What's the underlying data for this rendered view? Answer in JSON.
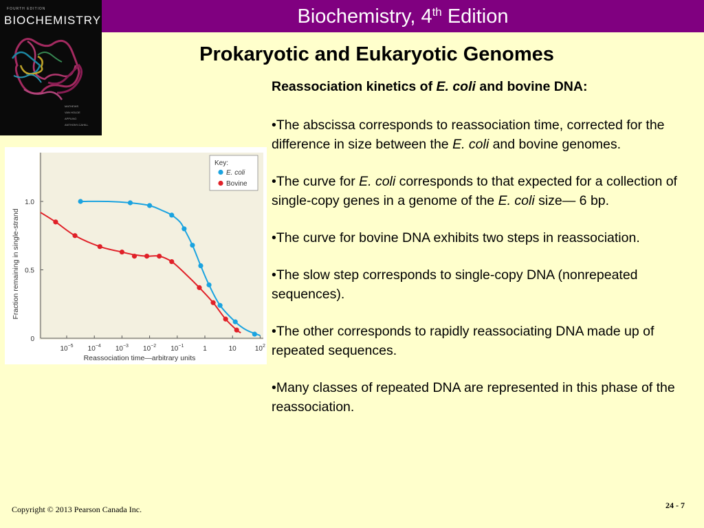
{
  "header": {
    "title_prefix": "Biochemistry, 4",
    "title_sup": "th",
    "title_suffix": " Edition",
    "bar_color": "#800080"
  },
  "book_cover": {
    "edition": "FOURTH EDITION",
    "title": "BIOCHEMISTRY",
    "authors": [
      "MATHEWS",
      "VAN HOLDE",
      "APPLING",
      "ANTHONY-CAHILL"
    ]
  },
  "slide": {
    "title": "Prokaryotic and Eukaryotic Genomes"
  },
  "text": {
    "heading_pre": "Reassociation kinetics of ",
    "heading_em": "E. coli",
    "heading_post": " and bovine DNA:",
    "b1_pre": "•The abscissa corresponds to reassociation time, corrected for the difference in size between the ",
    "b1_em": "E. coli",
    "b1_post": " and bovine genomes.",
    "b2_pre": "•The curve for ",
    "b2_em1": "E. coli",
    "b2_mid": " corresponds to that expected for a collection of single-copy genes in a genome of the ",
    "b2_em2": "E. coli",
    "b2_post": " size— 6 bp.",
    "b3": "•The curve for bovine DNA exhibits two steps in reassociation.",
    "b4": "•The slow step corresponds to single-copy DNA (nonrepeated sequences).",
    "b5": "•The other corresponds to rapidly reassociating DNA made up of repeated sequences.",
    "b6": "•Many classes of repeated DNA are represented in this phase of the reassociation."
  },
  "footer": {
    "copyright": "Copyright © 2013 Pearson Canada Inc.",
    "page": "24 - 7"
  },
  "chart_data": {
    "type": "line",
    "xlabel": "Reassociation time—arbitrary units",
    "ylabel": "Fraction remaining in single-strand",
    "x_scale": "log",
    "xlim": [
      -6,
      2
    ],
    "ylim": [
      0,
      1.2
    ],
    "x_ticks": [
      {
        "v": -5,
        "base": "10",
        "exp": "−5"
      },
      {
        "v": -4,
        "base": "10",
        "exp": "−4"
      },
      {
        "v": -3,
        "base": "10",
        "exp": "−3"
      },
      {
        "v": -2,
        "base": "10",
        "exp": "−2"
      },
      {
        "v": -1,
        "base": "10",
        "exp": "−1"
      },
      {
        "v": 0,
        "base": "1",
        "exp": ""
      },
      {
        "v": 1,
        "base": "10",
        "exp": ""
      },
      {
        "v": 2,
        "base": "10",
        "exp": "2"
      }
    ],
    "y_ticks": [
      {
        "v": 0,
        "label": "0"
      },
      {
        "v": 0.5,
        "label": "0.5"
      },
      {
        "v": 1.0,
        "label": "1.0"
      }
    ],
    "legend": {
      "title": "Key:",
      "position": "top-right"
    },
    "series": [
      {
        "name": "E. coli",
        "color": "#1aa3e0",
        "points": [
          [
            -4.5,
            1.0
          ],
          [
            -2.7,
            0.99
          ],
          [
            -2.0,
            0.97
          ],
          [
            -1.2,
            0.9
          ],
          [
            -0.75,
            0.8
          ],
          [
            -0.45,
            0.68
          ],
          [
            -0.15,
            0.53
          ],
          [
            0.15,
            0.39
          ],
          [
            0.55,
            0.24
          ],
          [
            1.1,
            0.12
          ],
          [
            1.8,
            0.03
          ]
        ],
        "curve": [
          [
            -4.5,
            1.0
          ],
          [
            -3.5,
            1.0
          ],
          [
            -2.7,
            0.99
          ],
          [
            -2.0,
            0.97
          ],
          [
            -1.5,
            0.93
          ],
          [
            -1.2,
            0.9
          ],
          [
            -0.9,
            0.85
          ],
          [
            -0.75,
            0.8
          ],
          [
            -0.45,
            0.68
          ],
          [
            -0.15,
            0.53
          ],
          [
            0.15,
            0.39
          ],
          [
            0.55,
            0.24
          ],
          [
            1.1,
            0.12
          ],
          [
            1.5,
            0.06
          ],
          [
            2.0,
            0.02
          ]
        ]
      },
      {
        "name": "Bovine",
        "color": "#e02028",
        "points": [
          [
            -5.4,
            0.85
          ],
          [
            -4.7,
            0.75
          ],
          [
            -3.8,
            0.67
          ],
          [
            -3.0,
            0.63
          ],
          [
            -2.55,
            0.6
          ],
          [
            -2.1,
            0.6
          ],
          [
            -1.65,
            0.6
          ],
          [
            -1.2,
            0.56
          ],
          [
            -0.2,
            0.37
          ],
          [
            0.3,
            0.26
          ],
          [
            0.75,
            0.14
          ],
          [
            1.15,
            0.06
          ]
        ],
        "curve": [
          [
            -5.95,
            0.92
          ],
          [
            -5.4,
            0.85
          ],
          [
            -4.7,
            0.75
          ],
          [
            -3.8,
            0.67
          ],
          [
            -3.0,
            0.63
          ],
          [
            -2.55,
            0.61
          ],
          [
            -2.1,
            0.6
          ],
          [
            -1.65,
            0.6
          ],
          [
            -1.2,
            0.56
          ],
          [
            -0.7,
            0.47
          ],
          [
            -0.2,
            0.37
          ],
          [
            0.3,
            0.26
          ],
          [
            0.75,
            0.14
          ],
          [
            1.15,
            0.06
          ],
          [
            1.3,
            0.04
          ]
        ]
      }
    ]
  }
}
